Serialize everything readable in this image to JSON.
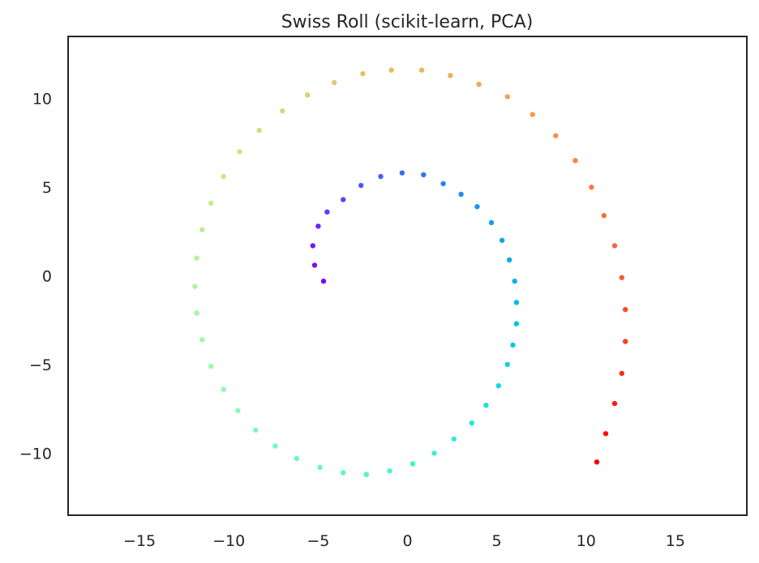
{
  "chart_data": {
    "type": "scatter",
    "title": "Swiss Roll (scikit-learn, PCA)",
    "xlabel": "",
    "ylabel": "",
    "xlim": [
      -19,
      19
    ],
    "ylim": [
      -13.5,
      13.5
    ],
    "x_ticks": [
      -15,
      -10,
      -5,
      0,
      5,
      10,
      15
    ],
    "y_ticks": [
      -10,
      -5,
      0,
      5,
      10
    ],
    "x_tick_labels": [
      "−15",
      "−10",
      "−5",
      "0",
      "5",
      "10",
      "15"
    ],
    "y_tick_labels": [
      "−10",
      "−5",
      "0",
      "5",
      "10"
    ],
    "grid": false,
    "legend": "none",
    "colormap": "rainbow",
    "color_stops": [
      "#7f00ff",
      "#4a55fb",
      "#1996f3",
      "#00c4e6",
      "#34eed4",
      "#66fbbd",
      "#9cfba4",
      "#c6eb87",
      "#e8c16a",
      "#fc9a52",
      "#ff5a30",
      "#ff0000"
    ],
    "point_color_scale": [
      0,
      0.5,
      1
    ],
    "points": [
      {
        "x": -4.7,
        "y": -0.3
      },
      {
        "x": -5.2,
        "y": 0.6
      },
      {
        "x": -5.3,
        "y": 1.7
      },
      {
        "x": -5.0,
        "y": 2.8
      },
      {
        "x": -4.5,
        "y": 3.6
      },
      {
        "x": -3.6,
        "y": 4.3
      },
      {
        "x": -2.6,
        "y": 5.1
      },
      {
        "x": -1.5,
        "y": 5.6
      },
      {
        "x": -0.3,
        "y": 5.8
      },
      {
        "x": 0.9,
        "y": 5.7
      },
      {
        "x": 2.0,
        "y": 5.2
      },
      {
        "x": 3.0,
        "y": 4.6
      },
      {
        "x": 3.9,
        "y": 3.9
      },
      {
        "x": 4.7,
        "y": 3.0
      },
      {
        "x": 5.3,
        "y": 2.0
      },
      {
        "x": 5.7,
        "y": 0.9
      },
      {
        "x": 6.0,
        "y": -0.3
      },
      {
        "x": 6.1,
        "y": -1.5
      },
      {
        "x": 6.1,
        "y": -2.7
      },
      {
        "x": 5.9,
        "y": -3.9
      },
      {
        "x": 5.6,
        "y": -5.0
      },
      {
        "x": 5.1,
        "y": -6.2
      },
      {
        "x": 4.4,
        "y": -7.3
      },
      {
        "x": 3.6,
        "y": -8.3
      },
      {
        "x": 2.6,
        "y": -9.2
      },
      {
        "x": 1.5,
        "y": -10.0
      },
      {
        "x": 0.3,
        "y": -10.6
      },
      {
        "x": -1.0,
        "y": -11.0
      },
      {
        "x": -2.3,
        "y": -11.2
      },
      {
        "x": -3.6,
        "y": -11.1
      },
      {
        "x": -4.9,
        "y": -10.8
      },
      {
        "x": -6.2,
        "y": -10.3
      },
      {
        "x": -7.4,
        "y": -9.6
      },
      {
        "x": -8.5,
        "y": -8.7
      },
      {
        "x": -9.5,
        "y": -7.6
      },
      {
        "x": -10.3,
        "y": -6.4
      },
      {
        "x": -11.0,
        "y": -5.1
      },
      {
        "x": -11.5,
        "y": -3.6
      },
      {
        "x": -11.8,
        "y": -2.1
      },
      {
        "x": -11.9,
        "y": -0.6
      },
      {
        "x": -11.8,
        "y": 1.0
      },
      {
        "x": -11.5,
        "y": 2.6
      },
      {
        "x": -11.0,
        "y": 4.1
      },
      {
        "x": -10.3,
        "y": 5.6
      },
      {
        "x": -9.4,
        "y": 7.0
      },
      {
        "x": -8.3,
        "y": 8.2
      },
      {
        "x": -7.0,
        "y": 9.3
      },
      {
        "x": -5.6,
        "y": 10.2
      },
      {
        "x": -4.1,
        "y": 10.9
      },
      {
        "x": -2.5,
        "y": 11.4
      },
      {
        "x": -0.9,
        "y": 11.6
      },
      {
        "x": 0.8,
        "y": 11.6
      },
      {
        "x": 2.4,
        "y": 11.3
      },
      {
        "x": 4.0,
        "y": 10.8
      },
      {
        "x": 5.6,
        "y": 10.1
      },
      {
        "x": 7.0,
        "y": 9.1
      },
      {
        "x": 8.3,
        "y": 7.9
      },
      {
        "x": 9.4,
        "y": 6.5
      },
      {
        "x": 10.3,
        "y": 5.0
      },
      {
        "x": 11.0,
        "y": 3.4
      },
      {
        "x": 11.6,
        "y": 1.7
      },
      {
        "x": 12.0,
        "y": -0.1
      },
      {
        "x": 12.2,
        "y": -1.9
      },
      {
        "x": 12.2,
        "y": -3.7
      },
      {
        "x": 12.0,
        "y": -5.5
      },
      {
        "x": 11.6,
        "y": -7.2
      },
      {
        "x": 11.1,
        "y": -8.9
      },
      {
        "x": 10.6,
        "y": -10.5
      }
    ]
  }
}
